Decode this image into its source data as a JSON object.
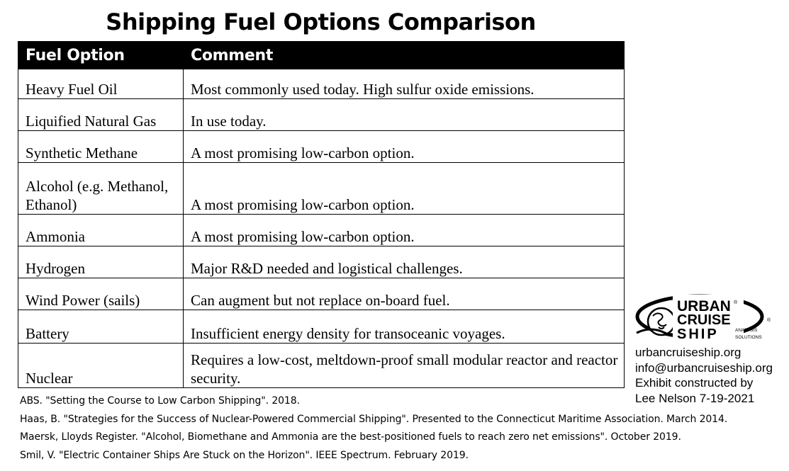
{
  "title": "Shipping Fuel Options Comparison",
  "table": {
    "headers": [
      "Fuel Option",
      "Comment"
    ],
    "rows": [
      {
        "fuel": "Heavy Fuel Oil",
        "comment": "Most commonly used today. High sulfur oxide emissions."
      },
      {
        "fuel": "Liquified Natural Gas",
        "comment": "In use today."
      },
      {
        "fuel": "Synthetic Methane",
        "comment": "A most promising low-carbon option."
      },
      {
        "fuel": "Alcohol (e.g. Methanol, Ethanol)",
        "comment": "A most promising low-carbon option."
      },
      {
        "fuel": "Ammonia",
        "comment": "A most promising low-carbon option."
      },
      {
        "fuel": "Hydrogen",
        "comment": "Major R&D needed and logistical challenges."
      },
      {
        "fuel": "Wind Power (sails)",
        "comment": "Can augment but not replace on-board fuel."
      },
      {
        "fuel": "Battery",
        "comment": "Insufficient energy density for transoceanic voyages."
      },
      {
        "fuel": "Nuclear",
        "comment": "Requires a low-cost, meltdown-proof small modular reactor and reactor security."
      }
    ]
  },
  "references": [
    "ABS. \"Setting the Course to Low Carbon Shipping\". 2018.",
    "Haas, B. \"Strategies for the Success of Nuclear-Powered Commercial Shipping\". Presented to the Connecticut Maritime Association. March 2014.",
    "Maersk, Lloyds Register. \"Alcohol, Biomethane and Ammonia are the best-positioned fuels to reach zero net emissions\". October 2019.",
    "Smil, V. \"Electric Container Ships Are Stuck on the Horizon\". IEEE Spectrum. February 2019."
  ],
  "logo": {
    "line1": "URBAN",
    "line2": "CRUISE",
    "line3": "SHIP",
    "tagline1": "ANALYSIS",
    "tagline2": "SOLUTIONS",
    "mark1": "®",
    "mark2": "®"
  },
  "contact": {
    "website": "urbancruiseship.org",
    "email": "info@urbancruiseship.org",
    "credit_line1": "Exhibit constructed by",
    "credit_line2": "Lee Nelson 7-19-2021"
  }
}
